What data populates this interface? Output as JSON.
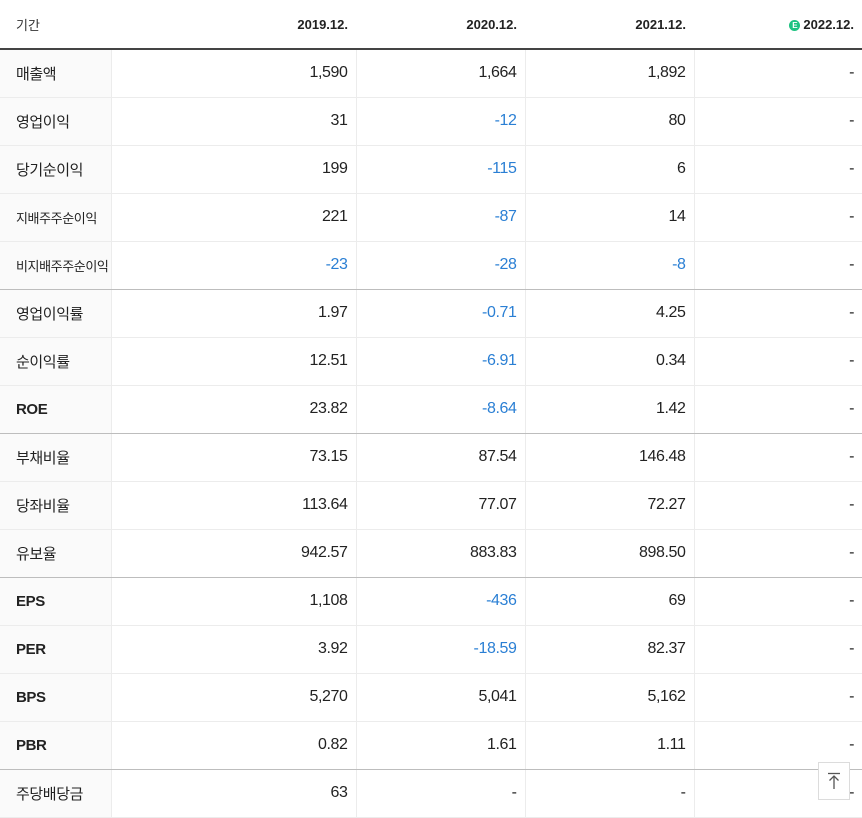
{
  "header": {
    "label": "기간",
    "periods": [
      "2019.12.",
      "2020.12.",
      "2021.12.",
      "2022.12."
    ],
    "estimate_icon": "estimate-icon",
    "estimate_mark": "E"
  },
  "rows": [
    {
      "label": "매출액",
      "values": [
        "1,590",
        "1,664",
        "1,892",
        "-"
      ]
    },
    {
      "label": "영업이익",
      "values": [
        "31",
        "-12",
        "80",
        "-"
      ]
    },
    {
      "label": "당기순이익",
      "values": [
        "199",
        "-115",
        "6",
        "-"
      ]
    },
    {
      "label": "지배주주순이익",
      "values": [
        "221",
        "-87",
        "14",
        "-"
      ]
    },
    {
      "label": "비지배주주순이익",
      "values": [
        "-23",
        "-28",
        "-8",
        "-"
      ]
    },
    {
      "label": "영업이익률",
      "values": [
        "1.97",
        "-0.71",
        "4.25",
        "-"
      ]
    },
    {
      "label": "순이익률",
      "values": [
        "12.51",
        "-6.91",
        "0.34",
        "-"
      ]
    },
    {
      "label": "ROE",
      "values": [
        "23.82",
        "-8.64",
        "1.42",
        "-"
      ]
    },
    {
      "label": "부채비율",
      "values": [
        "73.15",
        "87.54",
        "146.48",
        "-"
      ]
    },
    {
      "label": "당좌비율",
      "values": [
        "113.64",
        "77.07",
        "72.27",
        "-"
      ]
    },
    {
      "label": "유보율",
      "values": [
        "942.57",
        "883.83",
        "898.50",
        "-"
      ]
    },
    {
      "label": "EPS",
      "values": [
        "1,108",
        "-436",
        "69",
        "-"
      ]
    },
    {
      "label": "PER",
      "values": [
        "3.92",
        "-18.59",
        "82.37",
        "-"
      ]
    },
    {
      "label": "BPS",
      "values": [
        "5,270",
        "5,041",
        "5,162",
        "-"
      ]
    },
    {
      "label": "PBR",
      "values": [
        "0.82",
        "1.61",
        "1.11",
        "-"
      ]
    },
    {
      "label": "주당배당금",
      "values": [
        "63",
        "-",
        "-",
        "-"
      ]
    }
  ],
  "colors": {
    "negative": "#2a7fd4",
    "estimate": "#1ec281"
  },
  "scroll_top_icon": "arrow-up-to-top-icon"
}
